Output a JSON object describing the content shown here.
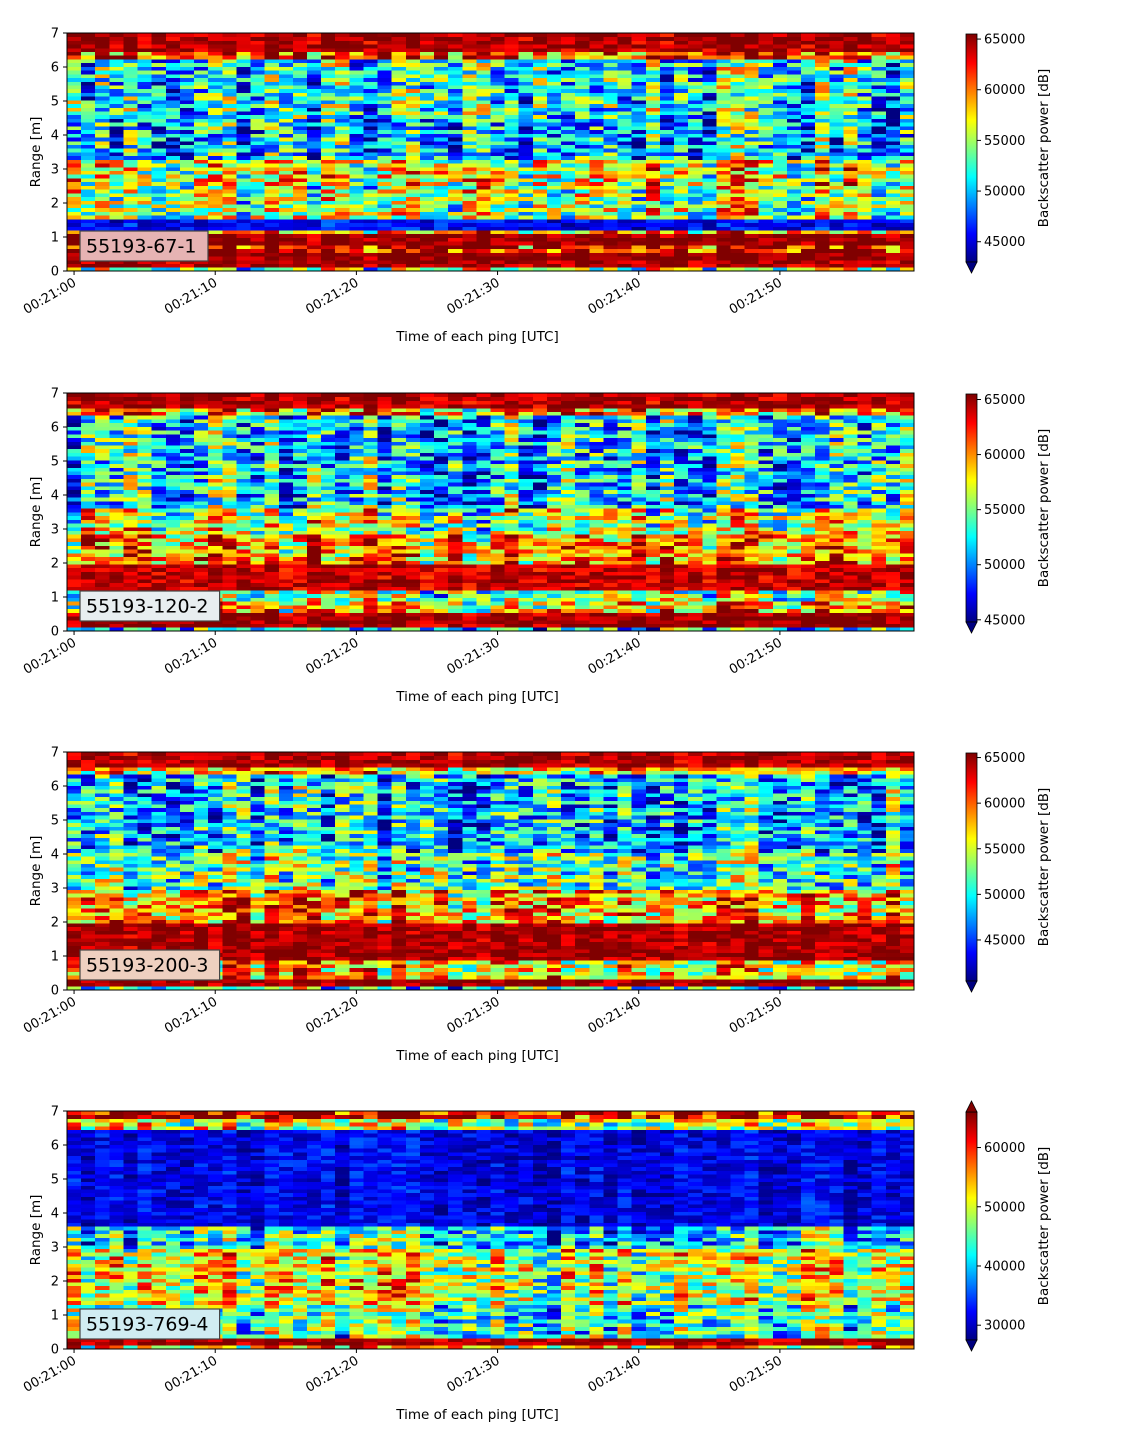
{
  "figure": {
    "colormap": "jet",
    "background": "#ffffff"
  },
  "chart_data": [
    {
      "type": "heatmap",
      "annotation": "55193-67-1",
      "annotation_box_color": "#e6b3b3",
      "xlabel": "Time of each ping [UTC]",
      "ylabel": "Range [m]",
      "colorbar_label": "Backscatter power [dB]",
      "x_tick_labels": [
        "00:21:00",
        "00:21:10",
        "00:21:20",
        "00:21:30",
        "00:21:40",
        "00:21:50"
      ],
      "x_tick_seconds": [
        0,
        10,
        20,
        30,
        40,
        50
      ],
      "xlim_seconds": [
        -0.5,
        59.5
      ],
      "y_ticks": [
        0,
        1,
        2,
        3,
        4,
        5,
        6,
        7
      ],
      "ylim": [
        0,
        7
      ],
      "colorbar_ticks": [
        45000,
        50000,
        55000,
        60000,
        65000
      ],
      "colorbar_range": [
        43000,
        65500
      ],
      "colorbar_extend": "min",
      "profile_description": "high backscatter band 0.2-1.0 m, low band near 1.3 m, moderate 1.5-3.3 m, mixed 3.5-6.2 m, high band near 6.5-7 m",
      "profile": [
        [
          0.0,
          0.15,
          0.55
        ],
        [
          0.15,
          0.3,
          0.97
        ],
        [
          0.3,
          0.55,
          1.0
        ],
        [
          0.55,
          0.75,
          0.9
        ],
        [
          0.75,
          1.05,
          0.99
        ],
        [
          1.05,
          1.2,
          0.7
        ],
        [
          1.2,
          1.55,
          0.12
        ],
        [
          1.55,
          2.5,
          0.55
        ],
        [
          2.5,
          3.3,
          0.6
        ],
        [
          3.3,
          4.5,
          0.32
        ],
        [
          4.5,
          6.2,
          0.38
        ],
        [
          6.2,
          6.45,
          0.8
        ],
        [
          6.45,
          7.0,
          0.96
        ]
      ],
      "noise": 0.28
    },
    {
      "type": "heatmap",
      "annotation": "55193-120-2",
      "annotation_box_color": "#e8eef0",
      "xlabel": "Time of each ping [UTC]",
      "ylabel": "Range [m]",
      "colorbar_label": "Backscatter power [dB]",
      "x_tick_labels": [
        "00:21:00",
        "00:21:10",
        "00:21:20",
        "00:21:30",
        "00:21:40",
        "00:21:50"
      ],
      "x_tick_seconds": [
        0,
        10,
        20,
        30,
        40,
        50
      ],
      "xlim_seconds": [
        -0.5,
        59.5
      ],
      "y_ticks": [
        0,
        1,
        2,
        3,
        4,
        5,
        6,
        7
      ],
      "ylim": [
        0,
        7
      ],
      "colorbar_ticks": [
        45000,
        50000,
        55000,
        60000,
        65000
      ],
      "colorbar_range": [
        44800,
        65500
      ],
      "colorbar_extend": "min",
      "profile_description": "high band 0.1-0.5 m, yellow 0.5-0.9 m, mixed near 1 m, high band 1.2-2.0 m, warm 2.0-2.8 m, mixed above, high band near 6.7-7 m",
      "profile": [
        [
          0.0,
          0.1,
          0.35
        ],
        [
          0.1,
          0.5,
          0.98
        ],
        [
          0.5,
          0.9,
          0.68
        ],
        [
          0.9,
          1.2,
          0.5
        ],
        [
          1.2,
          2.0,
          0.93
        ],
        [
          2.0,
          2.8,
          0.72
        ],
        [
          2.8,
          3.6,
          0.55
        ],
        [
          3.6,
          6.3,
          0.33
        ],
        [
          6.3,
          6.6,
          0.7
        ],
        [
          6.6,
          7.0,
          0.95
        ]
      ],
      "noise": 0.28
    },
    {
      "type": "heatmap",
      "annotation": "55193-200-3",
      "annotation_box_color": "#eed0c0",
      "xlabel": "Time of each ping [UTC]",
      "ylabel": "Range [m]",
      "colorbar_label": "Backscatter power [dB]",
      "x_tick_labels": [
        "00:21:00",
        "00:21:10",
        "00:21:20",
        "00:21:30",
        "00:21:40",
        "00:21:50"
      ],
      "x_tick_seconds": [
        0,
        10,
        20,
        30,
        40,
        50
      ],
      "xlim_seconds": [
        -0.5,
        59.5
      ],
      "y_ticks": [
        0,
        1,
        2,
        3,
        4,
        5,
        6,
        7
      ],
      "ylim": [
        0,
        7
      ],
      "colorbar_ticks": [
        45000,
        50000,
        55000,
        60000,
        65000
      ],
      "colorbar_range": [
        40500,
        65500
      ],
      "colorbar_extend": "min",
      "profile_description": "high band near bottom, yellow 0.4-0.9 m, high band 0.9-2.0 m, warm 2.0-3.0 m, mixed 3-6.3 m, high band near 6.7-7 m",
      "profile": [
        [
          0.0,
          0.1,
          0.4
        ],
        [
          0.1,
          0.35,
          0.98
        ],
        [
          0.35,
          0.9,
          0.65
        ],
        [
          0.9,
          2.0,
          0.97
        ],
        [
          2.0,
          3.0,
          0.72
        ],
        [
          3.0,
          4.0,
          0.45
        ],
        [
          4.0,
          6.3,
          0.32
        ],
        [
          6.3,
          6.6,
          0.65
        ],
        [
          6.6,
          7.0,
          0.95
        ]
      ],
      "noise": 0.27
    },
    {
      "type": "heatmap",
      "annotation": "55193-769-4",
      "annotation_box_color": "#d0ecf2",
      "xlabel": "Time of each ping [UTC]",
      "ylabel": "Range [m]",
      "colorbar_label": "Backscatter power [dB]",
      "x_tick_labels": [
        "00:21:00",
        "00:21:10",
        "00:21:20",
        "00:21:30",
        "00:21:40",
        "00:21:50"
      ],
      "x_tick_seconds": [
        0,
        10,
        20,
        30,
        40,
        50
      ],
      "xlim_seconds": [
        -0.5,
        59.5
      ],
      "y_ticks": [
        0,
        1,
        2,
        3,
        4,
        5,
        6,
        7
      ],
      "ylim": [
        0,
        7
      ],
      "colorbar_ticks": [
        30000,
        40000,
        50000,
        60000
      ],
      "colorbar_range": [
        27500,
        66000
      ],
      "colorbar_extend": "both",
      "profile_description": "yellow strip at bottom, high band 0.15-0.3 m, cyan 0.3-1.3 m, yellow-green 1.3-3.0 m, dark blue 3.5-6.5 m, high band near 6.8-7 m",
      "profile": [
        [
          0.0,
          0.12,
          0.65
        ],
        [
          0.12,
          0.3,
          0.96
        ],
        [
          0.3,
          1.3,
          0.42
        ],
        [
          1.3,
          3.0,
          0.58
        ],
        [
          3.0,
          3.6,
          0.35
        ],
        [
          3.6,
          6.5,
          0.1
        ],
        [
          6.5,
          6.8,
          0.55
        ],
        [
          6.8,
          7.0,
          0.9
        ]
      ],
      "noise": 0.24
    }
  ]
}
